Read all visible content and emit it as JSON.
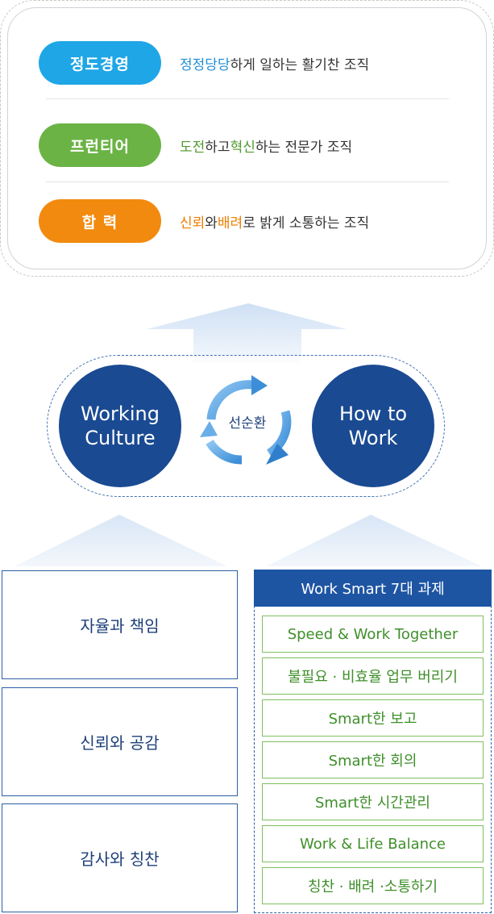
{
  "values": [
    {
      "pill": "정도경영",
      "pill_color": "#1fa6e6",
      "highlight_color": "#1f8fd6",
      "desc_parts": [
        {
          "text": "정정당당",
          "highlight": true
        },
        {
          "text": "하게 일하는 활기찬 조직",
          "highlight": false
        }
      ]
    },
    {
      "pill": "프런티어",
      "pill_color": "#6cb346",
      "highlight_color": "#4f9a2e",
      "desc_parts": [
        {
          "text": "도전",
          "highlight": true
        },
        {
          "text": "하고 ",
          "highlight": false
        },
        {
          "text": "혁신",
          "highlight": true
        },
        {
          "text": "하는 전문가 조직",
          "highlight": false
        }
      ]
    },
    {
      "pill": "합 력",
      "pill_color": "#f28a0f",
      "highlight_color": "#ef7d00",
      "desc_parts": [
        {
          "text": "신뢰",
          "highlight": true
        },
        {
          "text": "와 ",
          "highlight": false
        },
        {
          "text": "배려",
          "highlight": true
        },
        {
          "text": "로 밝게 소통하는 조직",
          "highlight": false
        }
      ]
    }
  ],
  "cycle": {
    "left_line1": "Working",
    "left_line2": "Culture",
    "right_line1": "How to",
    "right_line2": "Work",
    "center": "선순환"
  },
  "foundations": [
    "자율과 책임",
    "신뢰와 공감",
    "감사와 칭찬"
  ],
  "tasks": {
    "header": "Work Smart 7대 과제",
    "items": [
      "Speed & Work Together",
      "불필요 · 비효율 업무 버리기",
      "Smart한 보고",
      "Smart한 회의",
      "Smart한 시간관리",
      "Work & Life Balance",
      "칭찬 · 배려 ·소통하기"
    ]
  },
  "colors": {
    "navy": "#1a4a92",
    "header_blue": "#1e55a3",
    "task_green": "#3f8f2a",
    "arrow_light": "#e3edf9"
  }
}
